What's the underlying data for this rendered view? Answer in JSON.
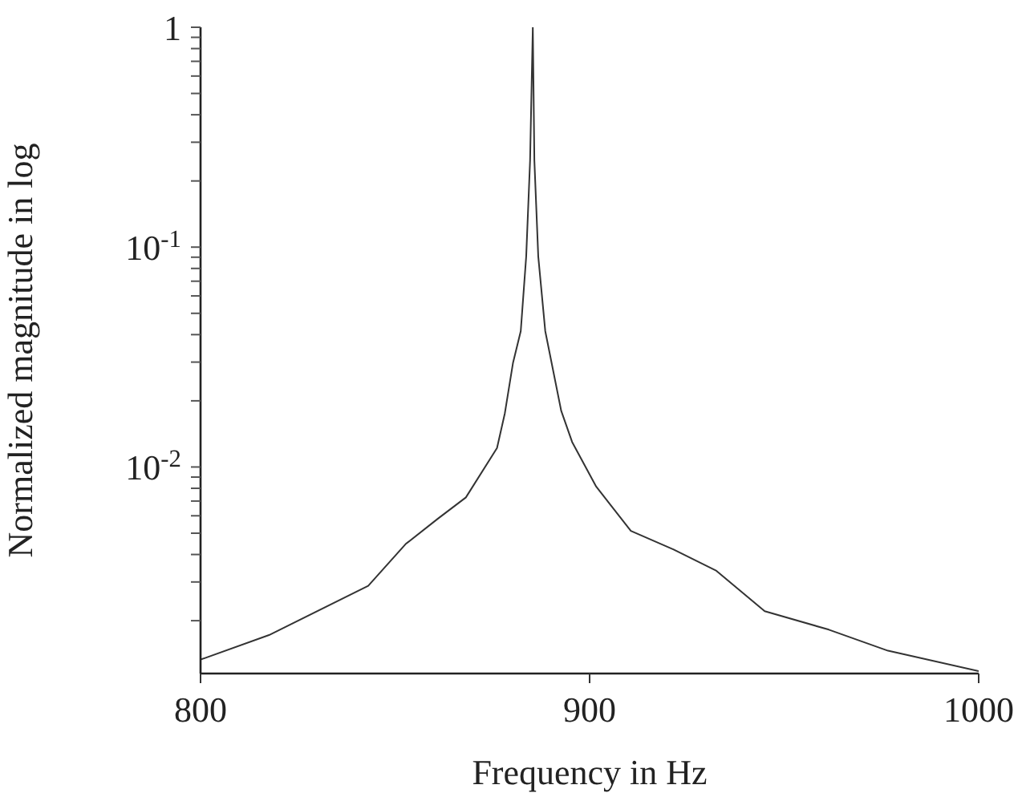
{
  "chart_data": {
    "type": "line",
    "xlabel": "Frequency in Hz",
    "ylabel": "Normalized magnitude in log",
    "log": "y",
    "grid": false,
    "legend": false,
    "marker": "none",
    "line_style": "solid",
    "xlim": [
      800,
      1000
    ],
    "xticks": [
      800,
      900,
      1000
    ],
    "ylim": [
      0.00115,
      1
    ],
    "yticks": [
      {
        "value": 1,
        "label": "1"
      },
      {
        "value": 0.1,
        "label": "10$^{-1}$"
      },
      {
        "value": 0.01,
        "label": "10$^{-2}$"
      },
      {
        "value": 0.002,
        "label": null
      },
      {
        "value": 0.003,
        "label": null
      },
      {
        "value": 0.004,
        "label": null
      },
      {
        "value": 0.005,
        "label": null
      },
      {
        "value": 0.006,
        "label": null
      },
      {
        "value": 0.007,
        "label": null
      },
      {
        "value": 0.008,
        "label": null
      },
      {
        "value": 0.009,
        "label": null
      },
      {
        "value": 0.02,
        "label": null
      },
      {
        "value": 0.03,
        "label": null
      },
      {
        "value": 0.04,
        "label": null
      },
      {
        "value": 0.05,
        "label": null
      },
      {
        "value": 0.06,
        "label": null
      },
      {
        "value": 0.07,
        "label": null
      },
      {
        "value": 0.08,
        "label": null
      },
      {
        "value": 0.09,
        "label": null
      },
      {
        "value": 0.2,
        "label": null
      },
      {
        "value": 0.3,
        "label": null
      },
      {
        "value": 0.4,
        "label": null
      },
      {
        "value": 0.5,
        "label": null
      },
      {
        "value": 0.6,
        "label": null
      },
      {
        "value": 0.7,
        "label": null
      },
      {
        "value": 0.8,
        "label": null
      },
      {
        "value": 0.9,
        "label": null
      }
    ],
    "x": [
      800,
      817.6,
      843.1,
      852.7,
      861,
      868.2,
      876.2,
      878.2,
      880.3,
      882.3,
      883.7,
      884.7,
      885.4,
      885.8,
      886.8,
      888.6,
      892.7,
      895.5,
      901.7,
      905.8,
      910.6,
      921.6,
      932.6,
      945,
      961.5,
      976.7,
      1000
    ],
    "series": [
      {
        "color": "#333333",
        "values": [
          0.00133,
          0.00172,
          0.00288,
          0.00446,
          0.00582,
          0.00727,
          0.0122,
          0.0175,
          0.0297,
          0.0415,
          0.0907,
          0.248,
          1,
          0.248,
          0.0907,
          0.0415,
          0.018,
          0.013,
          0.00814,
          0.00658,
          0.00512,
          0.00421,
          0.00337,
          0.00221,
          0.00182,
          0.00146,
          0.00118
        ]
      }
    ]
  }
}
